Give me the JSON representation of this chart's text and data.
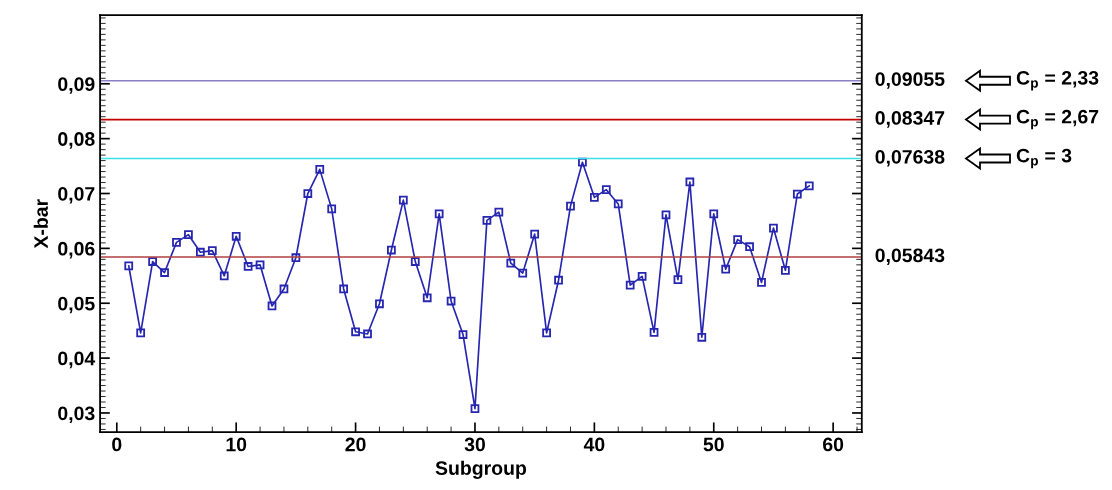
{
  "chart_data": {
    "type": "line",
    "xlabel": "Subgroup",
    "ylabel": "X-bar",
    "x": [
      1,
      2,
      3,
      4,
      5,
      6,
      7,
      8,
      9,
      10,
      11,
      12,
      13,
      14,
      15,
      16,
      17,
      18,
      19,
      20,
      21,
      22,
      23,
      24,
      25,
      26,
      27,
      28,
      29,
      30,
      31,
      32,
      33,
      34,
      35,
      36,
      37,
      38,
      39,
      40,
      41,
      42,
      43,
      44,
      45,
      46,
      47,
      48,
      49,
      50,
      51,
      52,
      53,
      54,
      55,
      56,
      57,
      58
    ],
    "series": [
      {
        "color": "#2626b0",
        "values": [
          0.0568,
          0.0446,
          0.0576,
          0.0556,
          0.0611,
          0.0625,
          0.0593,
          0.0596,
          0.055,
          0.0622,
          0.0567,
          0.057,
          0.0495,
          0.0526,
          0.0583,
          0.07,
          0.0744,
          0.0672,
          0.0526,
          0.0448,
          0.0444,
          0.0499,
          0.0597,
          0.0688,
          0.0576,
          0.051,
          0.0663,
          0.0504,
          0.0443,
          0.0308,
          0.0651,
          0.0666,
          0.0573,
          0.0555,
          0.0626,
          0.0446,
          0.0542,
          0.0677,
          0.0757,
          0.0693,
          0.0707,
          0.0681,
          0.0533,
          0.0549,
          0.0447,
          0.0661,
          0.0543,
          0.0721,
          0.0438,
          0.0663,
          0.0562,
          0.0616,
          0.0603,
          0.0538,
          0.0637,
          0.056,
          0.0699,
          0.0714
        ]
      }
    ],
    "marker": "square",
    "line_style": "solid",
    "grid": false,
    "legend": false,
    "xlim": [
      -1.4,
      62.4
    ],
    "ylim": [
      0.0265,
      0.1025
    ],
    "xticks": [
      0,
      10,
      20,
      30,
      40,
      50,
      60
    ],
    "yticks": [
      {
        "value": 0.03,
        "label": "0,03"
      },
      {
        "value": 0.04,
        "label": "0,04"
      },
      {
        "value": 0.05,
        "label": "0,05"
      },
      {
        "value": 0.06,
        "label": "0,06"
      },
      {
        "value": 0.07,
        "label": "0,07"
      },
      {
        "value": 0.08,
        "label": "0,08"
      },
      {
        "value": 0.09,
        "label": "0,09"
      }
    ],
    "ref_lines": [
      {
        "axis": "y",
        "value": 0.09055,
        "label": "0,09055",
        "color": "#8c7fc8"
      },
      {
        "axis": "y",
        "value": 0.08347,
        "label": "0,08347",
        "color": "#c00000"
      },
      {
        "axis": "y",
        "value": 0.07638,
        "label": "0,07638",
        "color": "#3ee0e8"
      },
      {
        "axis": "y",
        "value": 0.05843,
        "label": "0,05843",
        "color": "#b04040"
      }
    ],
    "annotations": [
      "C$_{p}$ = 2,33",
      "C$_{p}$ = 2,67",
      "C$_{p}$ = 3"
    ]
  }
}
